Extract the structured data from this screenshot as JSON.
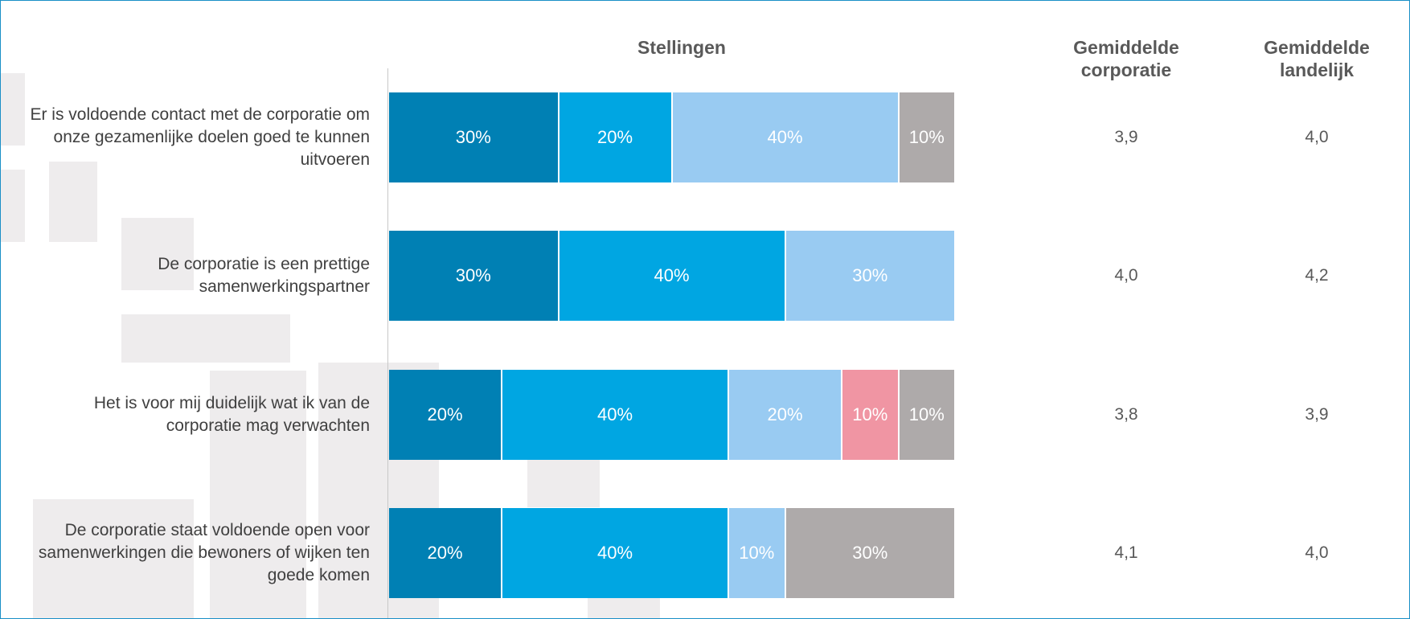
{
  "chart_data": {
    "type": "stacked-bar",
    "title": "Stellingen",
    "categories": [
      "Er is voldoende contact met de corporatie om onze gezamenlijke doelen goed te kunnen uitvoeren",
      "De corporatie is een prettige samenwerkingspartner",
      "Het is voor mij duidelijk wat ik van de corporatie mag verwachten",
      "De corporatie staat voldoende open voor samenwerkingen die bewoners of wijken ten goede komen"
    ],
    "xlim": [
      0,
      100
    ],
    "series": [
      {
        "color": "#0080b4",
        "values": [
          30,
          30,
          20,
          20
        ],
        "value_labels": [
          "30%",
          "30%",
          "20%",
          "20%"
        ]
      },
      {
        "color": "#00a6e2",
        "values": [
          20,
          40,
          40,
          40
        ],
        "value_labels": [
          "20%",
          "40%",
          "40%",
          "40%"
        ]
      },
      {
        "color": "#99cbf2",
        "values": [
          40,
          30,
          20,
          10
        ],
        "value_labels": [
          "40%",
          "30%",
          "20%",
          "10%"
        ]
      },
      {
        "color": "#f095a3",
        "values": [
          null,
          null,
          10,
          null
        ],
        "value_labels": [
          null,
          null,
          "10%",
          null
        ]
      },
      {
        "color": "#aeaaaa",
        "values": [
          10,
          null,
          10,
          30
        ],
        "value_labels": [
          "10%",
          null,
          "10%",
          "30%"
        ]
      }
    ],
    "columns": [
      {
        "header": "Gemiddelde corporatie",
        "values": [
          3.9,
          4.0,
          3.8,
          4.1
        ],
        "value_labels": [
          "3,9",
          "4,0",
          "3,8",
          "4,1"
        ]
      },
      {
        "header": "Gemiddelde landelijk",
        "values": [
          4.0,
          4.2,
          3.9,
          4.0
        ],
        "value_labels": [
          "4,0",
          "4,2",
          "3,9",
          "4,0"
        ]
      }
    ]
  }
}
